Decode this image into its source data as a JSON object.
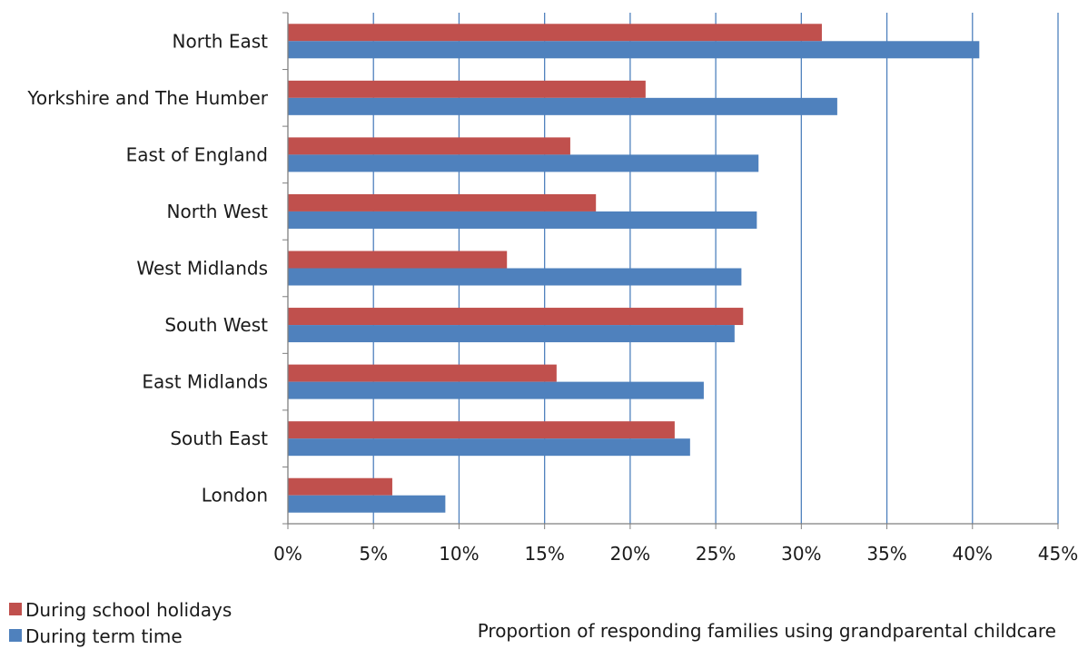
{
  "chart_data": {
    "type": "bar",
    "orientation": "horizontal",
    "categories": [
      "North East",
      "Yorkshire and The Humber",
      "East of England",
      "North West",
      "West Midlands",
      "South West",
      "East Midlands",
      "South East",
      "London"
    ],
    "series": [
      {
        "name": "During school holidays",
        "color": "#c0504d",
        "values": [
          31.2,
          20.9,
          16.5,
          18.0,
          12.8,
          26.6,
          15.7,
          22.6,
          6.1
        ]
      },
      {
        "name": "During term time",
        "color": "#4f81bd",
        "values": [
          40.4,
          32.1,
          27.5,
          27.4,
          26.5,
          26.1,
          24.3,
          23.5,
          9.2
        ]
      }
    ],
    "xlabel": "Proportion of responding families using grandparental childcare",
    "xlim": [
      0,
      45
    ],
    "xticks": [
      0,
      5,
      10,
      15,
      20,
      25,
      30,
      35,
      40,
      45
    ],
    "xtick_labels": [
      "0%",
      "5%",
      "10%",
      "15%",
      "20%",
      "25%",
      "30%",
      "35%",
      "40%",
      "45%"
    ],
    "grid": "vertical",
    "grid_color": "#4f81bd",
    "legend_position": "bottom-left"
  }
}
